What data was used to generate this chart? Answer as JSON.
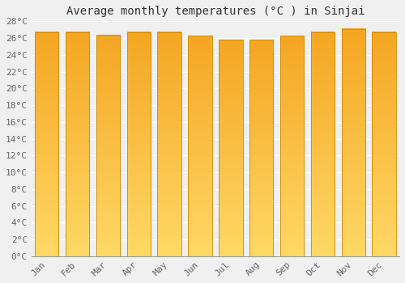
{
  "title": "Average monthly temperatures (°C ) in Sinjai",
  "months": [
    "Jan",
    "Feb",
    "Mar",
    "Apr",
    "May",
    "Jun",
    "Jul",
    "Aug",
    "Sep",
    "Oct",
    "Nov",
    "Dec"
  ],
  "temperatures": [
    26.7,
    26.7,
    26.4,
    26.7,
    26.7,
    26.3,
    25.8,
    25.8,
    26.3,
    26.7,
    27.1,
    26.7
  ],
  "ylim": [
    0,
    28
  ],
  "yticks": [
    0,
    2,
    4,
    6,
    8,
    10,
    12,
    14,
    16,
    18,
    20,
    22,
    24,
    26,
    28
  ],
  "ytick_labels": [
    "0°C",
    "2°C",
    "4°C",
    "6°C",
    "8°C",
    "10°C",
    "12°C",
    "14°C",
    "16°C",
    "18°C",
    "20°C",
    "22°C",
    "24°C",
    "26°C",
    "28°C"
  ],
  "bar_color_bottom": "#FFD966",
  "bar_color_top": "#F5A623",
  "background_color": "#f0f0f0",
  "grid_color": "#ffffff",
  "title_fontsize": 10,
  "tick_fontsize": 8,
  "bar_edge_color": "#cc8800",
  "bar_width": 0.78
}
